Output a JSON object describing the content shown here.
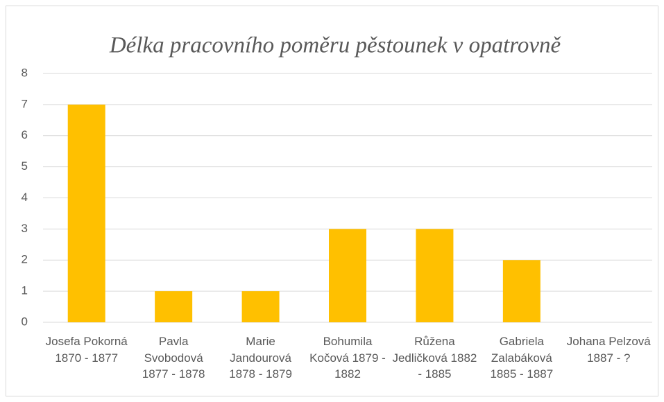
{
  "chart_data": {
    "type": "bar",
    "title": "Délka pracovního poměru pěstounek v opatrovně",
    "categories": [
      "Josefa Pokorná 1870 - 1877",
      "Pavla Svobodová 1877 - 1878",
      "Marie Jandourová 1878 - 1879",
      "Bohumila Kočová 1879 - 1882",
      "Růžena Jedličková 1882 - 1885",
      "Gabriela Zalabáková 1885 - 1887",
      "Johana Pelzová 1887 - ?"
    ],
    "values": [
      7,
      1,
      1,
      3,
      3,
      2,
      0
    ],
    "color": "#ffc000",
    "ylim": [
      0,
      8
    ],
    "yticks": [
      0,
      1,
      2,
      3,
      4,
      5,
      6,
      7,
      8
    ],
    "grid": true
  }
}
